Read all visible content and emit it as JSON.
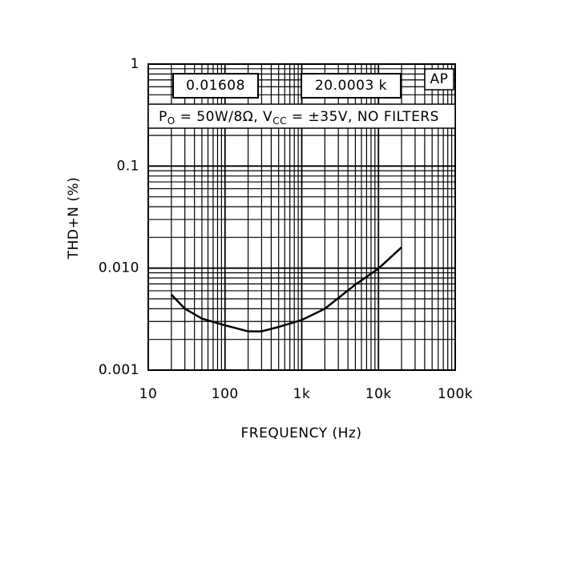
{
  "chart_data": {
    "type": "line",
    "x_label": "FREQUENCY (Hz)",
    "y_label": "THD+N (%)",
    "readouts": [
      "0.01608",
      "20.0003 k",
      "AP"
    ],
    "annotation": [
      "P",
      "O",
      " = 50W/8Ω, V",
      "CC",
      " = ±35V, NO FILTERS"
    ],
    "x": [
      20,
      30,
      50,
      100,
      200,
      300,
      500,
      1000,
      2000,
      5000,
      10000,
      20000
    ],
    "series": [
      {
        "color": "#000000",
        "values": [
          0.0055,
          0.004,
          0.0032,
          0.00275,
          0.0024,
          0.0024,
          0.00265,
          0.0031,
          0.004,
          0.0069,
          0.0099,
          0.016
        ]
      }
    ],
    "xlim": [
      10,
      100000
    ],
    "ylim": [
      0.001,
      1
    ],
    "xticks": [
      10,
      100,
      {
        "value": 1000,
        "label": "1k"
      },
      {
        "value": 10000,
        "label": "10k"
      },
      {
        "value": 100000,
        "label": "100k"
      }
    ],
    "yticks": [
      0.001,
      {
        "value": 0.01,
        "label": "0.010"
      },
      0.1,
      1
    ],
    "log_x": true,
    "log_y": true,
    "grid": true,
    "minor_grid": true
  }
}
